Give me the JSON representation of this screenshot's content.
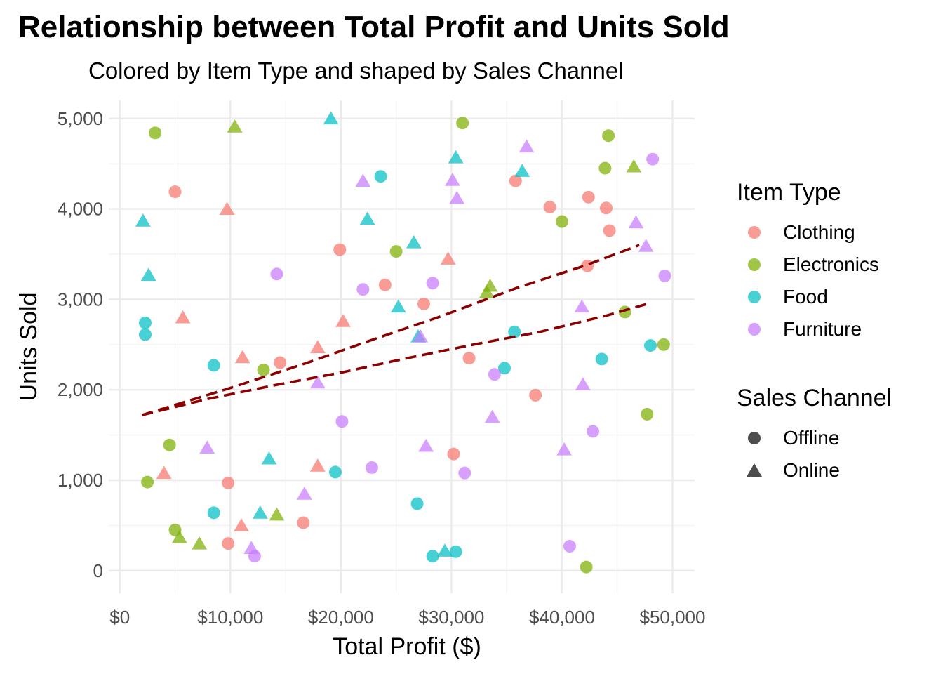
{
  "chart_data": {
    "type": "scatter",
    "title": "Relationship between Total Profit and Units Sold",
    "subtitle": "Colored by Item Type and shaped by Sales Channel",
    "xlabel": "Total Profit ($)",
    "ylabel": "Units Sold",
    "xlim": [
      -1000,
      52000
    ],
    "ylim": [
      -250,
      5200
    ],
    "x_ticks": [
      0,
      10000,
      20000,
      30000,
      40000,
      50000
    ],
    "x_tick_labels": [
      "$0",
      "$10,000",
      "$20,000",
      "$30,000",
      "$40,000",
      "$50,000"
    ],
    "y_ticks": [
      0,
      1000,
      2000,
      3000,
      4000,
      5000
    ],
    "y_tick_labels": [
      "0",
      "1,000",
      "2,000",
      "3,000",
      "4,000",
      "5,000"
    ],
    "grid": true,
    "legend_placement": "right",
    "color_legend": {
      "title": "Item Type",
      "items": [
        {
          "label": "Clothing",
          "color": "#F8766D"
        },
        {
          "label": "Electronics",
          "color": "#7CAE00"
        },
        {
          "label": "Food",
          "color": "#00BFC4"
        },
        {
          "label": "Furniture",
          "color": "#C77CFF"
        }
      ]
    },
    "shape_legend": {
      "title": "Sales Channel",
      "items": [
        {
          "label": "Offline",
          "shape": "circle"
        },
        {
          "label": "Online",
          "shape": "triangle"
        }
      ]
    },
    "points": [
      {
        "x": 5000,
        "y": 4190,
        "type": "Clothing",
        "channel": "Offline"
      },
      {
        "x": 9700,
        "y": 3990,
        "type": "Clothing",
        "channel": "Online"
      },
      {
        "x": 19900,
        "y": 3550,
        "type": "Clothing",
        "channel": "Offline"
      },
      {
        "x": 24000,
        "y": 3160,
        "type": "Clothing",
        "channel": "Offline"
      },
      {
        "x": 27500,
        "y": 2950,
        "type": "Clothing",
        "channel": "Offline"
      },
      {
        "x": 29700,
        "y": 3440,
        "type": "Clothing",
        "channel": "Online"
      },
      {
        "x": 31600,
        "y": 2350,
        "type": "Clothing",
        "channel": "Offline"
      },
      {
        "x": 35800,
        "y": 4310,
        "type": "Clothing",
        "channel": "Offline"
      },
      {
        "x": 38900,
        "y": 4020,
        "type": "Clothing",
        "channel": "Offline"
      },
      {
        "x": 42400,
        "y": 4130,
        "type": "Clothing",
        "channel": "Offline"
      },
      {
        "x": 44000,
        "y": 4010,
        "type": "Clothing",
        "channel": "Offline"
      },
      {
        "x": 44300,
        "y": 3760,
        "type": "Clothing",
        "channel": "Offline"
      },
      {
        "x": 42300,
        "y": 3370,
        "type": "Clothing",
        "channel": "Offline"
      },
      {
        "x": 5700,
        "y": 2790,
        "type": "Clothing",
        "channel": "Online"
      },
      {
        "x": 11100,
        "y": 2350,
        "type": "Clothing",
        "channel": "Online"
      },
      {
        "x": 14500,
        "y": 2300,
        "type": "Clothing",
        "channel": "Offline"
      },
      {
        "x": 17900,
        "y": 2460,
        "type": "Clothing",
        "channel": "Online"
      },
      {
        "x": 20200,
        "y": 2750,
        "type": "Clothing",
        "channel": "Online"
      },
      {
        "x": 37600,
        "y": 1940,
        "type": "Clothing",
        "channel": "Offline"
      },
      {
        "x": 30200,
        "y": 1290,
        "type": "Clothing",
        "channel": "Offline"
      },
      {
        "x": 4000,
        "y": 1070,
        "type": "Clothing",
        "channel": "Online"
      },
      {
        "x": 9800,
        "y": 970,
        "type": "Clothing",
        "channel": "Offline"
      },
      {
        "x": 17900,
        "y": 1150,
        "type": "Clothing",
        "channel": "Online"
      },
      {
        "x": 11000,
        "y": 490,
        "type": "Clothing",
        "channel": "Online"
      },
      {
        "x": 16600,
        "y": 530,
        "type": "Clothing",
        "channel": "Offline"
      },
      {
        "x": 9800,
        "y": 300,
        "type": "Clothing",
        "channel": "Offline"
      },
      {
        "x": 3200,
        "y": 4840,
        "type": "Electronics",
        "channel": "Offline"
      },
      {
        "x": 10400,
        "y": 4900,
        "type": "Electronics",
        "channel": "Online"
      },
      {
        "x": 31000,
        "y": 4950,
        "type": "Electronics",
        "channel": "Offline"
      },
      {
        "x": 44200,
        "y": 4810,
        "type": "Electronics",
        "channel": "Offline"
      },
      {
        "x": 43900,
        "y": 4450,
        "type": "Electronics",
        "channel": "Offline"
      },
      {
        "x": 46500,
        "y": 4460,
        "type": "Electronics",
        "channel": "Online"
      },
      {
        "x": 40000,
        "y": 3860,
        "type": "Electronics",
        "channel": "Offline"
      },
      {
        "x": 25000,
        "y": 3530,
        "type": "Electronics",
        "channel": "Offline"
      },
      {
        "x": 33500,
        "y": 3140,
        "type": "Electronics",
        "channel": "Online"
      },
      {
        "x": 33200,
        "y": 3070,
        "type": "Electronics",
        "channel": "Online"
      },
      {
        "x": 45700,
        "y": 2860,
        "type": "Electronics",
        "channel": "Offline"
      },
      {
        "x": 49200,
        "y": 2500,
        "type": "Electronics",
        "channel": "Offline"
      },
      {
        "x": 13000,
        "y": 2220,
        "type": "Electronics",
        "channel": "Offline"
      },
      {
        "x": 47700,
        "y": 1730,
        "type": "Electronics",
        "channel": "Offline"
      },
      {
        "x": 4500,
        "y": 1390,
        "type": "Electronics",
        "channel": "Offline"
      },
      {
        "x": 2500,
        "y": 980,
        "type": "Electronics",
        "channel": "Offline"
      },
      {
        "x": 5000,
        "y": 450,
        "type": "Electronics",
        "channel": "Offline"
      },
      {
        "x": 5400,
        "y": 360,
        "type": "Electronics",
        "channel": "Online"
      },
      {
        "x": 7200,
        "y": 290,
        "type": "Electronics",
        "channel": "Online"
      },
      {
        "x": 14200,
        "y": 610,
        "type": "Electronics",
        "channel": "Online"
      },
      {
        "x": 42200,
        "y": 40,
        "type": "Electronics",
        "channel": "Offline"
      },
      {
        "x": 19100,
        "y": 4990,
        "type": "Food",
        "channel": "Online"
      },
      {
        "x": 23600,
        "y": 4360,
        "type": "Food",
        "channel": "Offline"
      },
      {
        "x": 30400,
        "y": 4560,
        "type": "Food",
        "channel": "Online"
      },
      {
        "x": 36400,
        "y": 4410,
        "type": "Food",
        "channel": "Online"
      },
      {
        "x": 2100,
        "y": 3860,
        "type": "Food",
        "channel": "Online"
      },
      {
        "x": 2600,
        "y": 3260,
        "type": "Food",
        "channel": "Online"
      },
      {
        "x": 22400,
        "y": 3880,
        "type": "Food",
        "channel": "Online"
      },
      {
        "x": 26600,
        "y": 3620,
        "type": "Food",
        "channel": "Online"
      },
      {
        "x": 25200,
        "y": 2910,
        "type": "Food",
        "channel": "Online"
      },
      {
        "x": 2300,
        "y": 2740,
        "type": "Food",
        "channel": "Offline"
      },
      {
        "x": 2300,
        "y": 2610,
        "type": "Food",
        "channel": "Offline"
      },
      {
        "x": 27000,
        "y": 2580,
        "type": "Food",
        "channel": "Online"
      },
      {
        "x": 35700,
        "y": 2640,
        "type": "Food",
        "channel": "Offline"
      },
      {
        "x": 48000,
        "y": 2490,
        "type": "Food",
        "channel": "Offline"
      },
      {
        "x": 43600,
        "y": 2340,
        "type": "Food",
        "channel": "Offline"
      },
      {
        "x": 8500,
        "y": 2270,
        "type": "Food",
        "channel": "Offline"
      },
      {
        "x": 34800,
        "y": 2240,
        "type": "Food",
        "channel": "Offline"
      },
      {
        "x": 13500,
        "y": 1230,
        "type": "Food",
        "channel": "Online"
      },
      {
        "x": 19500,
        "y": 1090,
        "type": "Food",
        "channel": "Offline"
      },
      {
        "x": 8500,
        "y": 640,
        "type": "Food",
        "channel": "Offline"
      },
      {
        "x": 12700,
        "y": 630,
        "type": "Food",
        "channel": "Online"
      },
      {
        "x": 26900,
        "y": 740,
        "type": "Food",
        "channel": "Offline"
      },
      {
        "x": 28300,
        "y": 160,
        "type": "Food",
        "channel": "Offline"
      },
      {
        "x": 29400,
        "y": 210,
        "type": "Food",
        "channel": "Online"
      },
      {
        "x": 30400,
        "y": 210,
        "type": "Food",
        "channel": "Offline"
      },
      {
        "x": 36800,
        "y": 4680,
        "type": "Furniture",
        "channel": "Online"
      },
      {
        "x": 48200,
        "y": 4550,
        "type": "Furniture",
        "channel": "Offline"
      },
      {
        "x": 22000,
        "y": 4300,
        "type": "Furniture",
        "channel": "Online"
      },
      {
        "x": 30100,
        "y": 4310,
        "type": "Furniture",
        "channel": "Online"
      },
      {
        "x": 30500,
        "y": 4110,
        "type": "Furniture",
        "channel": "Online"
      },
      {
        "x": 46700,
        "y": 3840,
        "type": "Furniture",
        "channel": "Online"
      },
      {
        "x": 47600,
        "y": 3580,
        "type": "Furniture",
        "channel": "Online"
      },
      {
        "x": 14200,
        "y": 3280,
        "type": "Furniture",
        "channel": "Offline"
      },
      {
        "x": 49300,
        "y": 3260,
        "type": "Furniture",
        "channel": "Offline"
      },
      {
        "x": 22000,
        "y": 3110,
        "type": "Furniture",
        "channel": "Offline"
      },
      {
        "x": 28300,
        "y": 3180,
        "type": "Furniture",
        "channel": "Offline"
      },
      {
        "x": 41800,
        "y": 2910,
        "type": "Furniture",
        "channel": "Online"
      },
      {
        "x": 27200,
        "y": 2580,
        "type": "Furniture",
        "channel": "Online"
      },
      {
        "x": 33900,
        "y": 2170,
        "type": "Furniture",
        "channel": "Offline"
      },
      {
        "x": 17900,
        "y": 2070,
        "type": "Furniture",
        "channel": "Online"
      },
      {
        "x": 41900,
        "y": 2050,
        "type": "Furniture",
        "channel": "Online"
      },
      {
        "x": 20100,
        "y": 1650,
        "type": "Furniture",
        "channel": "Offline"
      },
      {
        "x": 33700,
        "y": 1690,
        "type": "Furniture",
        "channel": "Online"
      },
      {
        "x": 42800,
        "y": 1540,
        "type": "Furniture",
        "channel": "Offline"
      },
      {
        "x": 7900,
        "y": 1350,
        "type": "Furniture",
        "channel": "Online"
      },
      {
        "x": 27700,
        "y": 1370,
        "type": "Furniture",
        "channel": "Online"
      },
      {
        "x": 40200,
        "y": 1330,
        "type": "Furniture",
        "channel": "Online"
      },
      {
        "x": 22800,
        "y": 1140,
        "type": "Furniture",
        "channel": "Offline"
      },
      {
        "x": 31200,
        "y": 1080,
        "type": "Furniture",
        "channel": "Offline"
      },
      {
        "x": 16700,
        "y": 840,
        "type": "Furniture",
        "channel": "Online"
      },
      {
        "x": 11900,
        "y": 240,
        "type": "Furniture",
        "channel": "Online"
      },
      {
        "x": 12200,
        "y": 160,
        "type": "Furniture",
        "channel": "Offline"
      },
      {
        "x": 40700,
        "y": 270,
        "type": "Furniture",
        "channel": "Offline"
      }
    ],
    "trend_lines": [
      {
        "color": "#8B0000",
        "style": "dashed",
        "x": [
          2000,
          10000,
          17000,
          23000,
          29000,
          36000,
          42000,
          47000
        ],
        "y": [
          1720,
          2020,
          2300,
          2560,
          2810,
          3130,
          3370,
          3600
        ]
      },
      {
        "color": "#8B0000",
        "style": "dashed",
        "x": [
          2000,
          8000,
          14000,
          20000,
          26000,
          32000,
          38000,
          44000,
          48000
        ],
        "y": [
          1720,
          1900,
          2050,
          2190,
          2350,
          2500,
          2640,
          2820,
          2960
        ]
      }
    ]
  }
}
